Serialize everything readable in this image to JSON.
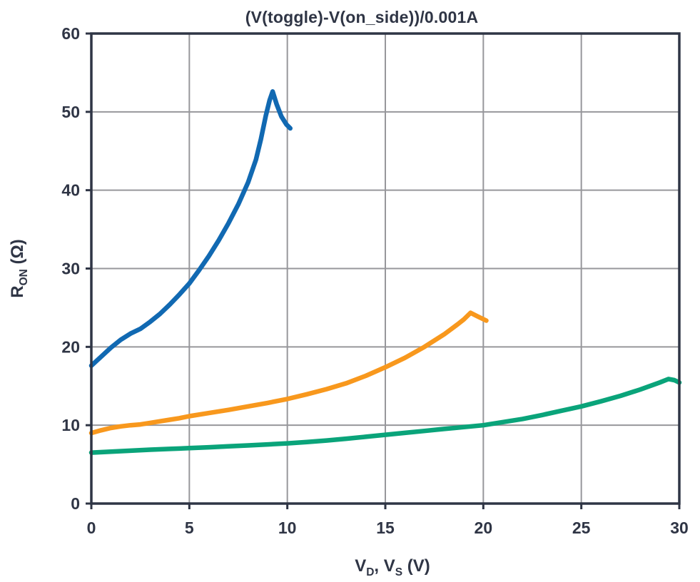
{
  "page": {
    "background": "#FFFFFF"
  },
  "chart_data": {
    "type": "line",
    "title": "(V(toggle)-V(on_side))/0.001A",
    "xlabel": "VD, VS (V)",
    "ylabel": "RON (Ω)",
    "xlabel_segments": [
      {
        "t": "V",
        "sub": false
      },
      {
        "t": "D",
        "sub": true
      },
      {
        "t": ", V",
        "sub": false
      },
      {
        "t": "S",
        "sub": true
      },
      {
        "t": " (V)",
        "sub": false
      }
    ],
    "ylabel_segments": [
      {
        "t": "R",
        "sub": false
      },
      {
        "t": "ON",
        "sub": true
      },
      {
        "t": " (Ω)",
        "sub": false
      }
    ],
    "xlim": [
      0,
      30
    ],
    "ylim": [
      0,
      60
    ],
    "xticks": [
      0,
      5,
      10,
      15,
      20,
      25,
      30
    ],
    "yticks": [
      0,
      10,
      20,
      30,
      40,
      50,
      60
    ],
    "grid": true,
    "legend": "none",
    "colors": {
      "frame": "#2F3545",
      "text": "#2F3545",
      "grid": "#97979B",
      "background": "#FFFFFF"
    },
    "series": [
      {
        "name": "blue",
        "color": "#1169B2",
        "points": [
          [
            0,
            17.6
          ],
          [
            0.5,
            18.75
          ],
          [
            1,
            19.9
          ],
          [
            1.5,
            20.9
          ],
          [
            2,
            21.7
          ],
          [
            2.5,
            22.3
          ],
          [
            3,
            23.2
          ],
          [
            3.5,
            24.2
          ],
          [
            4,
            25.4
          ],
          [
            4.5,
            26.7
          ],
          [
            5,
            28.1
          ],
          [
            5.5,
            29.8
          ],
          [
            6,
            31.6
          ],
          [
            6.5,
            33.6
          ],
          [
            7,
            35.8
          ],
          [
            7.5,
            38.2
          ],
          [
            8,
            41.0
          ],
          [
            8.4,
            43.9
          ],
          [
            8.65,
            46.5
          ],
          [
            8.9,
            49.5
          ],
          [
            9.1,
            51.5
          ],
          [
            9.25,
            52.6
          ],
          [
            9.45,
            51.0
          ],
          [
            9.7,
            49.4
          ],
          [
            9.95,
            48.4
          ],
          [
            10.15,
            47.9
          ]
        ]
      },
      {
        "name": "orange",
        "color": "#F8981D",
        "points": [
          [
            0,
            9.0
          ],
          [
            0.5,
            9.35
          ],
          [
            1,
            9.65
          ],
          [
            1.5,
            9.85
          ],
          [
            2,
            10.0
          ],
          [
            2.5,
            10.1
          ],
          [
            3,
            10.3
          ],
          [
            3.5,
            10.5
          ],
          [
            4,
            10.7
          ],
          [
            4.5,
            10.9
          ],
          [
            5,
            11.15
          ],
          [
            6,
            11.55
          ],
          [
            7,
            11.95
          ],
          [
            8,
            12.4
          ],
          [
            9,
            12.85
          ],
          [
            10,
            13.35
          ],
          [
            11,
            13.95
          ],
          [
            12,
            14.6
          ],
          [
            13,
            15.35
          ],
          [
            14,
            16.3
          ],
          [
            15,
            17.4
          ],
          [
            16,
            18.6
          ],
          [
            17,
            20.0
          ],
          [
            18,
            21.6
          ],
          [
            18.7,
            22.9
          ],
          [
            19.0,
            23.5
          ],
          [
            19.35,
            24.35
          ],
          [
            19.7,
            23.9
          ],
          [
            20.15,
            23.35
          ]
        ]
      },
      {
        "name": "green",
        "color": "#0AA47A",
        "points": [
          [
            0,
            6.5
          ],
          [
            1,
            6.62
          ],
          [
            2,
            6.75
          ],
          [
            3,
            6.87
          ],
          [
            4,
            6.97
          ],
          [
            5,
            7.07
          ],
          [
            6,
            7.18
          ],
          [
            7,
            7.3
          ],
          [
            8,
            7.42
          ],
          [
            9,
            7.55
          ],
          [
            10,
            7.68
          ],
          [
            11,
            7.85
          ],
          [
            12,
            8.05
          ],
          [
            13,
            8.28
          ],
          [
            14,
            8.52
          ],
          [
            15,
            8.78
          ],
          [
            16,
            9.02
          ],
          [
            17,
            9.27
          ],
          [
            18,
            9.52
          ],
          [
            19,
            9.76
          ],
          [
            20,
            10.0
          ],
          [
            21,
            10.4
          ],
          [
            22,
            10.8
          ],
          [
            23,
            11.3
          ],
          [
            24,
            11.85
          ],
          [
            25,
            12.4
          ],
          [
            26,
            13.05
          ],
          [
            27,
            13.75
          ],
          [
            28,
            14.55
          ],
          [
            29,
            15.45
          ],
          [
            29.45,
            15.9
          ],
          [
            29.75,
            15.75
          ],
          [
            30,
            15.45
          ]
        ]
      }
    ]
  }
}
